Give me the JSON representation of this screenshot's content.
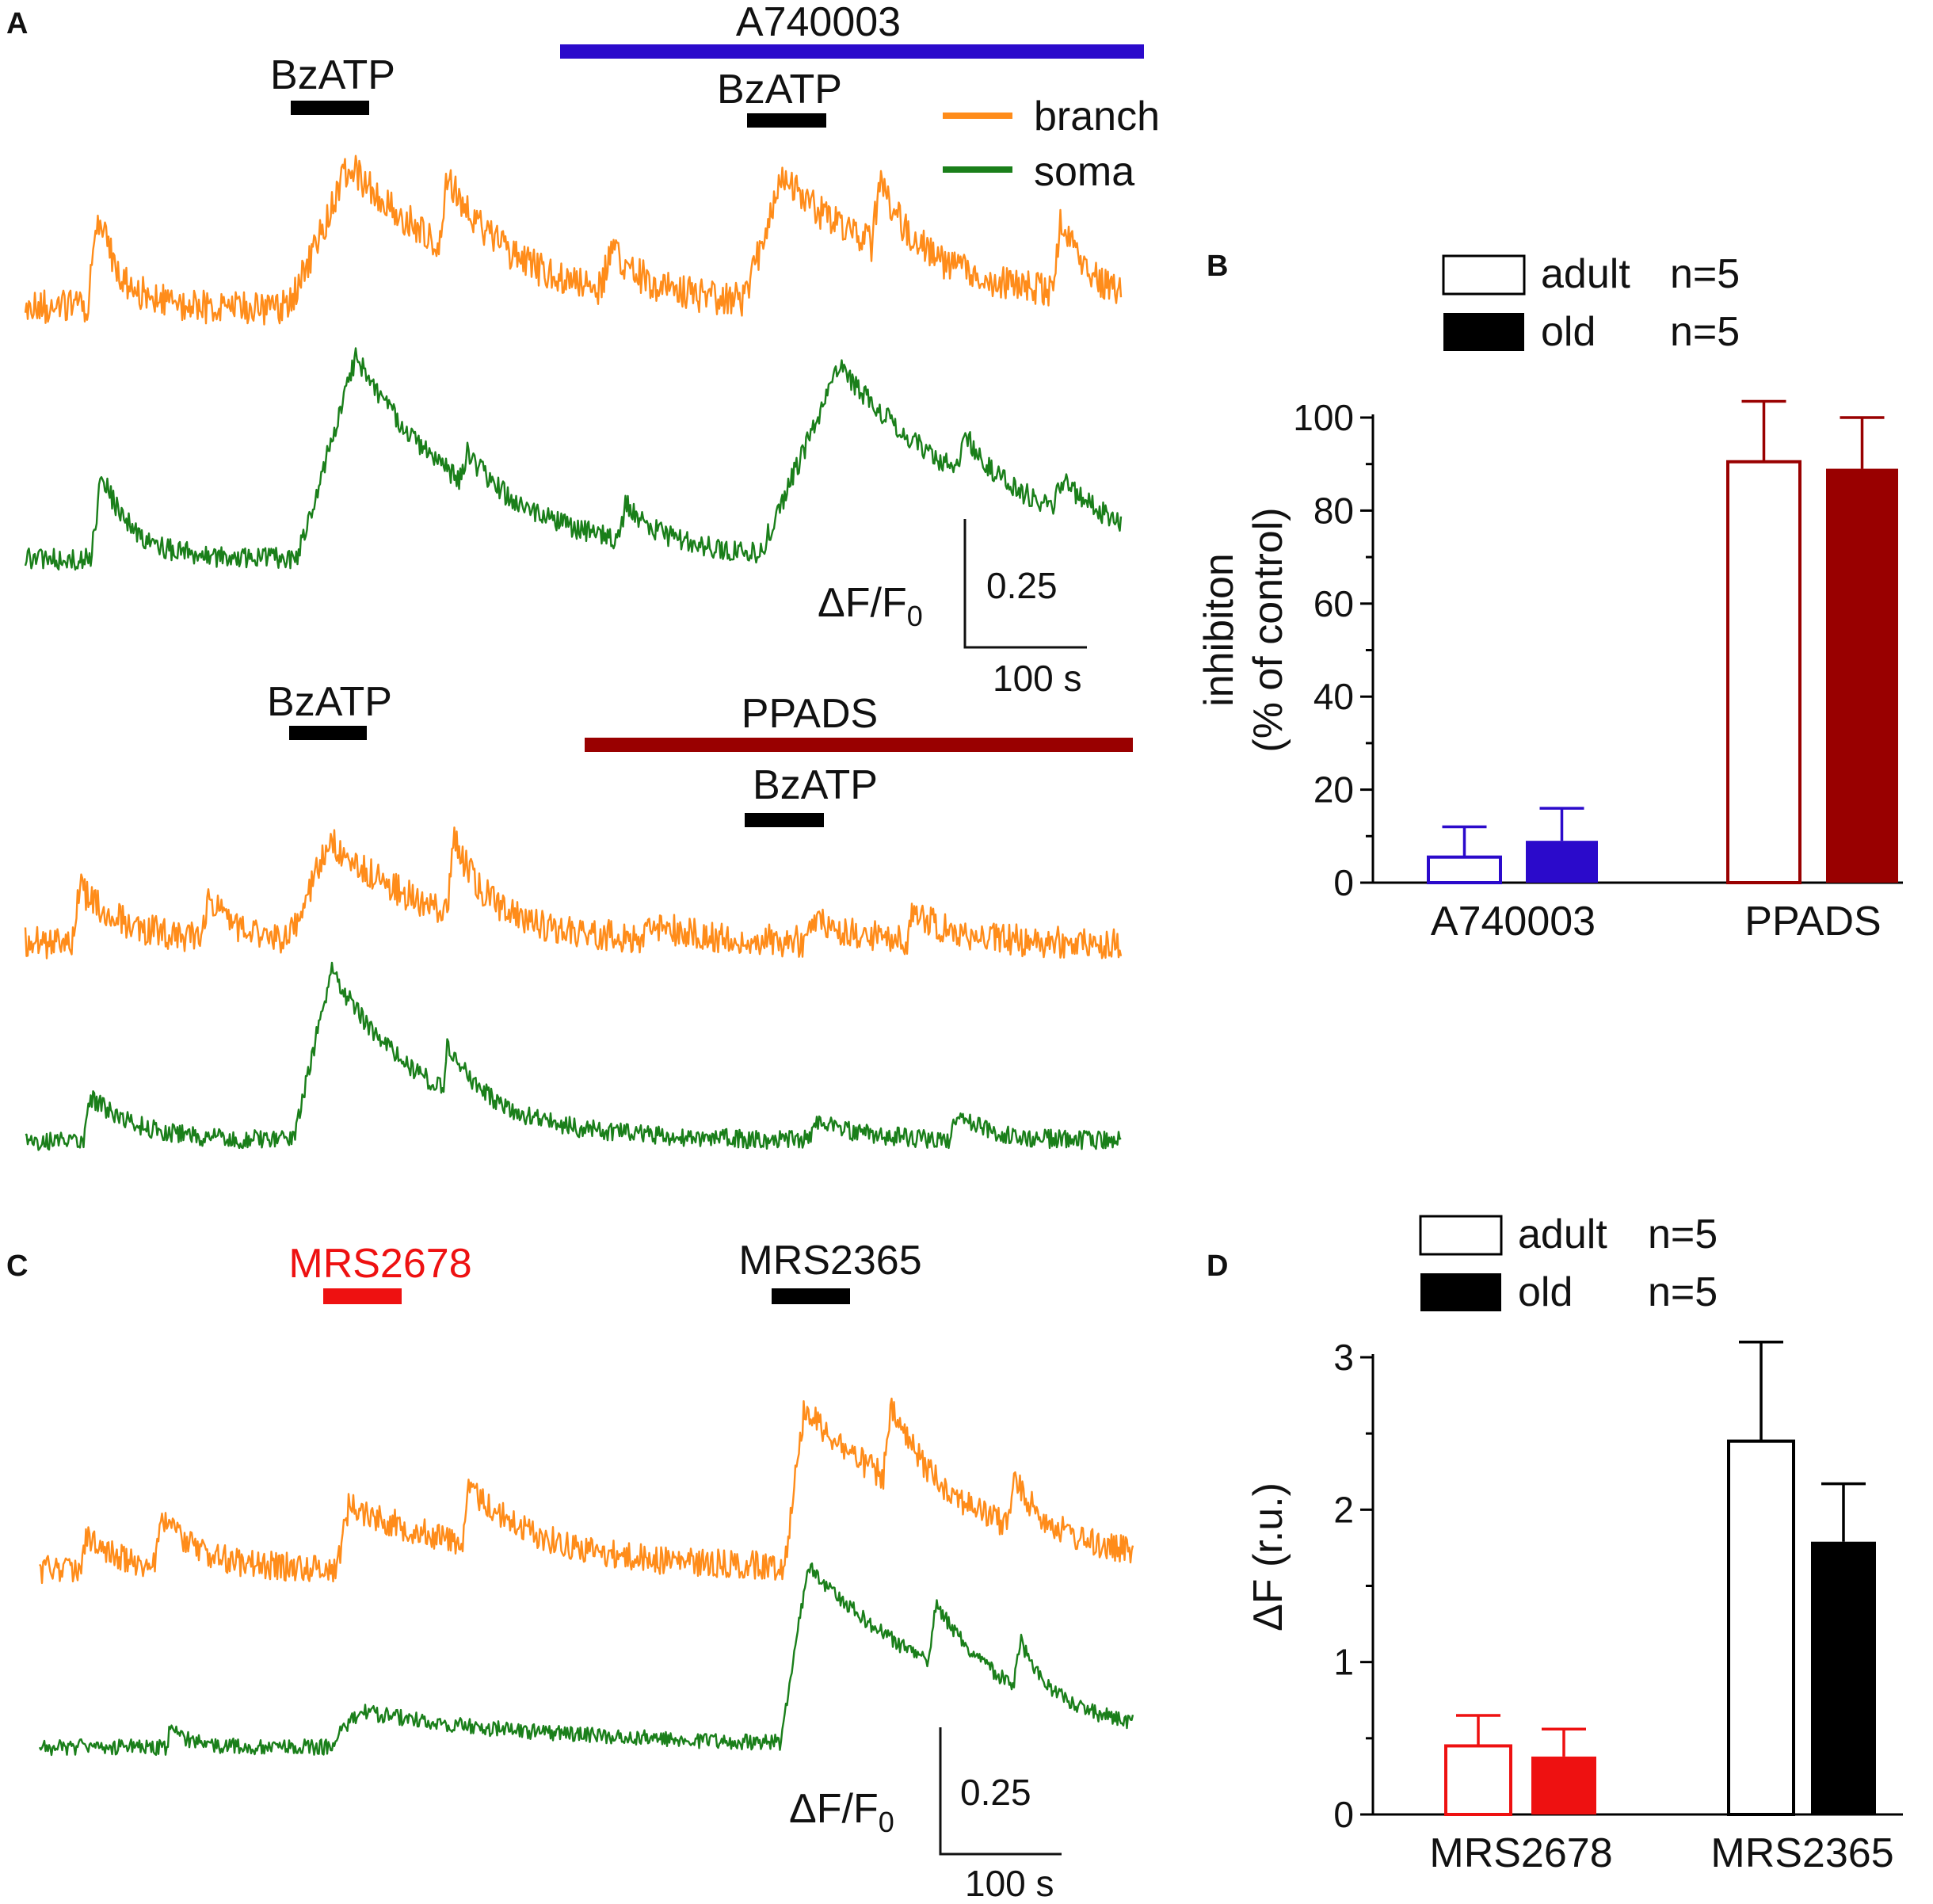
{
  "panels": {
    "a": "A",
    "b": "B",
    "c": "C",
    "d": "D"
  },
  "colors": {
    "branch": "#ff8c1a",
    "soma": "#1a7f1a",
    "a740003": "#2b0acb",
    "ppads": "#990000",
    "mrs2678": "#ee1111",
    "black": "#000000"
  },
  "panel_a": {
    "top": {
      "drug_label": "A740003",
      "stim1_label": "BzATP",
      "stim2_label": "BzATP"
    },
    "bottom": {
      "drug_label": "PPADS",
      "stim1_label": "BzATP",
      "stim2_label": "BzATP"
    },
    "legend": {
      "branch": "branch",
      "soma": "soma"
    },
    "scalebar": {
      "y_unit": "ΔF/F",
      "y_sub": "0",
      "y_value": "0.25",
      "x_value": "100 s"
    }
  },
  "panel_c": {
    "stim1_label": "MRS2678",
    "stim2_label": "MRS2365",
    "scalebar": {
      "y_unit": "ΔF/F",
      "y_sub": "0",
      "y_value": "0.25",
      "x_value": "100 s"
    }
  },
  "chart_data": [
    {
      "panel": "B",
      "type": "bar",
      "ylabel_line1": "inhibiton",
      "ylabel_line2": "(% of control)",
      "ylim": [
        0,
        100
      ],
      "yticks": [
        "0",
        "20",
        "40",
        "60",
        "80",
        "100"
      ],
      "categories": [
        "A740003",
        "PPADS"
      ],
      "legend": [
        {
          "name": "adult",
          "n": "n=5",
          "fill": "open"
        },
        {
          "name": "old",
          "n": "n=5",
          "fill": "solid"
        }
      ],
      "series": [
        {
          "name": "adult",
          "values": [
            5.5,
            90.5
          ],
          "errors": [
            6.5,
            13.0
          ]
        },
        {
          "name": "old",
          "values": [
            9.0,
            89.0
          ],
          "errors": [
            7.0,
            11.0
          ]
        }
      ]
    },
    {
      "panel": "D",
      "type": "bar",
      "ylabel": "ΔF (r.u.)",
      "ylim": [
        0,
        3
      ],
      "yticks": [
        "0",
        "1",
        "2",
        "3"
      ],
      "categories": [
        "MRS2678",
        "MRS2365"
      ],
      "legend": [
        {
          "name": "adult",
          "n": "n=5",
          "fill": "open"
        },
        {
          "name": "old",
          "n": "n=5",
          "fill": "solid"
        }
      ],
      "series": [
        {
          "name": "adult",
          "values": [
            0.45,
            2.45
          ],
          "errors": [
            0.2,
            0.65
          ]
        },
        {
          "name": "old",
          "values": [
            0.38,
            1.79
          ],
          "errors": [
            0.18,
            0.38
          ]
        }
      ]
    }
  ]
}
